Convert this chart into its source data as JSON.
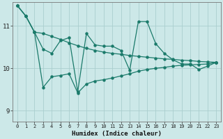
{
  "title": "",
  "xlabel": "Humidex (Indice chaleur)",
  "background_color": "#cce8e8",
  "grid_color": "#aacece",
  "line_color": "#1a7a6a",
  "xlim": [
    -0.5,
    23.5
  ],
  "ylim": [
    8.75,
    11.55
  ],
  "yticks": [
    9,
    10,
    11
  ],
  "xticks": [
    0,
    1,
    2,
    3,
    4,
    5,
    6,
    7,
    8,
    9,
    10,
    11,
    12,
    13,
    14,
    15,
    16,
    17,
    18,
    19,
    20,
    21,
    22,
    23
  ],
  "series1_x": [
    0,
    1,
    2,
    3,
    4,
    5,
    6,
    7,
    8,
    9,
    10,
    11,
    12,
    13,
    14,
    15,
    16,
    17,
    18,
    19,
    20,
    21,
    22,
    23
  ],
  "series1_y": [
    11.48,
    11.23,
    10.85,
    10.82,
    10.75,
    10.68,
    10.6,
    10.53,
    10.47,
    10.42,
    10.38,
    10.35,
    10.33,
    10.3,
    10.28,
    10.26,
    10.24,
    10.22,
    10.21,
    10.19,
    10.18,
    10.16,
    10.15,
    10.14
  ],
  "series2_x": [
    0,
    1,
    2,
    3,
    4,
    5,
    6,
    7,
    8,
    9,
    10,
    11,
    12,
    13,
    14,
    15,
    16,
    17,
    18,
    19,
    20,
    21,
    22,
    23
  ],
  "series2_y": [
    11.48,
    11.23,
    10.85,
    10.45,
    10.35,
    10.65,
    10.72,
    9.45,
    10.82,
    10.55,
    10.52,
    10.52,
    10.42,
    9.95,
    11.1,
    11.1,
    10.58,
    10.35,
    10.2,
    10.1,
    10.1,
    9.97,
    10.05,
    10.14
  ],
  "series3_x": [
    0,
    1,
    2,
    3,
    4,
    5,
    6,
    7,
    8,
    9,
    10,
    11,
    12,
    13,
    14,
    15,
    16,
    17,
    18,
    19,
    20,
    21,
    22,
    23
  ],
  "series3_y": [
    11.48,
    11.23,
    10.85,
    9.55,
    9.8,
    9.83,
    9.87,
    9.42,
    9.63,
    9.7,
    9.73,
    9.77,
    9.82,
    9.87,
    9.93,
    9.97,
    10.0,
    10.02,
    10.05,
    10.07,
    10.08,
    10.09,
    10.1,
    10.14
  ]
}
